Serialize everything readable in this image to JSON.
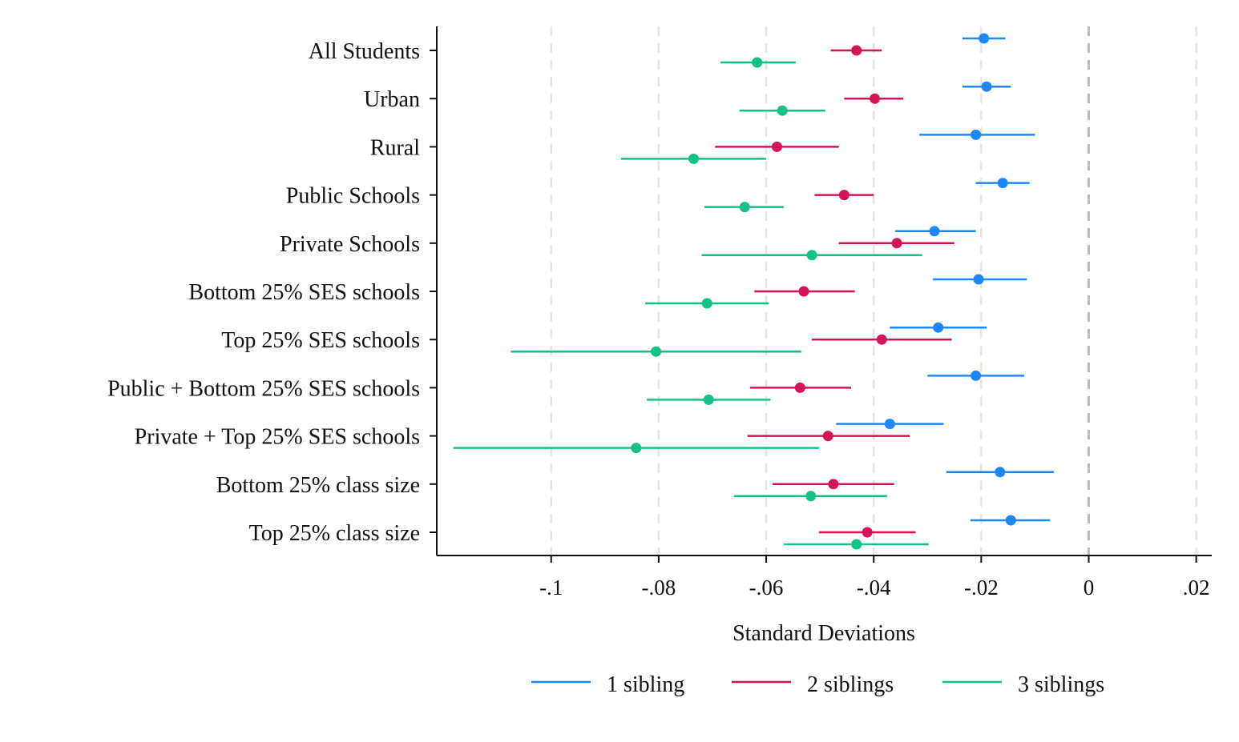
{
  "chart_data": {
    "type": "scatter",
    "subtype": "coefficient-plot-horizontal",
    "title": "",
    "xlabel": "Standard Deviations",
    "ylabel": "",
    "xlim": [
      -0.121,
      0.023
    ],
    "xticks": [
      -0.1,
      -0.08,
      -0.06,
      -0.04,
      -0.02,
      0,
      0.02
    ],
    "xtick_labels": [
      "-.1",
      "-.08",
      "-.06",
      "-.04",
      "-.02",
      "0",
      ".02"
    ],
    "grid": "vertical dashed",
    "reference_line": 0,
    "legend_position": "bottom",
    "categories": [
      "All Students",
      "Urban",
      "Rural",
      "Public Schools",
      "Private Schools",
      "Bottom 25% SES schools",
      "Top 25% SES schools",
      "Public + Bottom 25% SES schools",
      "Private + Top 25% SES schools",
      "Bottom 25% class size",
      "Top 25% class size"
    ],
    "series": [
      {
        "name": "1 sibling",
        "color": "#1e87f5",
        "values": [
          -0.0195,
          -0.019,
          -0.021,
          -0.016,
          -0.0287,
          -0.0205,
          -0.028,
          -0.021,
          -0.037,
          -0.0165,
          -0.0145
        ],
        "ci_low": [
          -0.0235,
          -0.0235,
          -0.0315,
          -0.021,
          -0.036,
          -0.029,
          -0.037,
          -0.03,
          -0.047,
          -0.0265,
          -0.022
        ],
        "ci_high": [
          -0.0155,
          -0.0145,
          -0.01,
          -0.011,
          -0.021,
          -0.0115,
          -0.019,
          -0.012,
          -0.027,
          -0.0065,
          -0.0072
        ]
      },
      {
        "name": "2 siblings",
        "color": "#d4145a",
        "values": [
          -0.0432,
          -0.0398,
          -0.058,
          -0.0455,
          -0.0357,
          -0.053,
          -0.0385,
          -0.0537,
          -0.0485,
          -0.0475,
          -0.0412
        ],
        "ci_low": [
          -0.048,
          -0.0455,
          -0.0695,
          -0.051,
          -0.0465,
          -0.0622,
          -0.0515,
          -0.063,
          -0.0635,
          -0.0588,
          -0.0502
        ],
        "ci_high": [
          -0.0385,
          -0.0345,
          -0.0465,
          -0.04,
          -0.025,
          -0.0435,
          -0.0255,
          -0.0442,
          -0.0333,
          -0.0362,
          -0.0322
        ]
      },
      {
        "name": "3 siblings",
        "color": "#12c285",
        "values": [
          -0.0617,
          -0.057,
          -0.0735,
          -0.064,
          -0.0515,
          -0.071,
          -0.0805,
          -0.0707,
          -0.0842,
          -0.0517,
          -0.0432
        ],
        "ci_low": [
          -0.0685,
          -0.065,
          -0.087,
          -0.0715,
          -0.072,
          -0.0825,
          -0.1075,
          -0.0822,
          -0.1182,
          -0.066,
          -0.0567
        ],
        "ci_high": [
          -0.0545,
          -0.049,
          -0.06,
          -0.0567,
          -0.031,
          -0.0595,
          -0.0535,
          -0.0592,
          -0.0502,
          -0.0375,
          -0.0298
        ]
      }
    ]
  }
}
